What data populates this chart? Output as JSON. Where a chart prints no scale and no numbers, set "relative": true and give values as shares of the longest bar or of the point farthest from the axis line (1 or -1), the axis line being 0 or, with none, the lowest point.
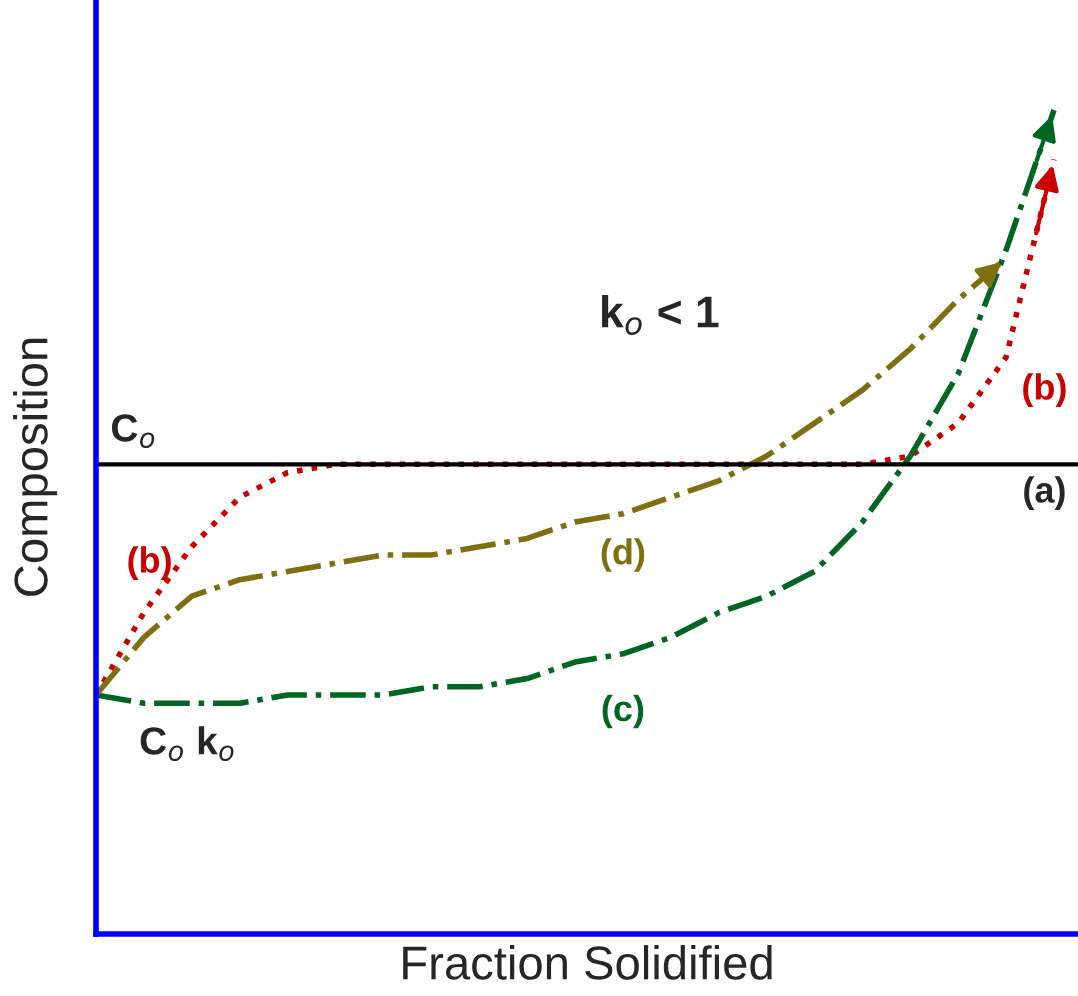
{
  "chart_data": {
    "type": "line",
    "relative": true,
    "xlabel": "Fraction Solidified",
    "ylabel": "Composition",
    "categories": [
      null,
      null,
      null,
      null,
      null,
      null,
      null,
      null,
      null,
      null,
      null,
      null,
      null,
      null,
      null,
      null,
      null,
      null,
      null,
      null,
      null
    ],
    "series": [
      {
        "name": "(b)",
        "color": "#cc0000",
        "line_style": "dotted",
        "values": [
          0.29,
          0.39,
          0.47,
          0.53,
          0.56,
          0.57,
          0.57,
          0.57,
          0.57,
          0.57,
          0.57,
          0.57,
          0.57,
          0.57,
          0.57,
          0.57,
          0.57,
          0.58,
          0.62,
          0.7,
          0.94
        ]
      },
      {
        "name": "(c)",
        "color": "#006622",
        "line_style": "dashdot",
        "values": [
          0.29,
          0.28,
          0.28,
          0.28,
          0.29,
          0.29,
          0.29,
          0.3,
          0.3,
          0.31,
          0.33,
          0.34,
          0.36,
          0.39,
          0.41,
          0.44,
          0.5,
          0.58,
          0.68,
          0.83,
          1.0
        ]
      },
      {
        "name": "(d)",
        "color": "#7f6f10",
        "line_style": "dashdot",
        "values": [
          0.29,
          0.36,
          0.41,
          0.43,
          0.44,
          0.45,
          0.46,
          0.46,
          0.47,
          0.48,
          0.5,
          0.51,
          0.53,
          0.55,
          0.58,
          0.62,
          0.66,
          0.71,
          0.77,
          0.82,
          null
        ]
      }
    ],
    "ref_lines": [
      {
        "axis": "y",
        "value": 0.57,
        "label": "(a)",
        "color": "#000000"
      }
    ],
    "annotations": [
      "k$_{o}$ < 1",
      "C$_{o}$",
      "C$_{o}$ k$_{o}$"
    ],
    "marker": "none",
    "legend": false
  }
}
